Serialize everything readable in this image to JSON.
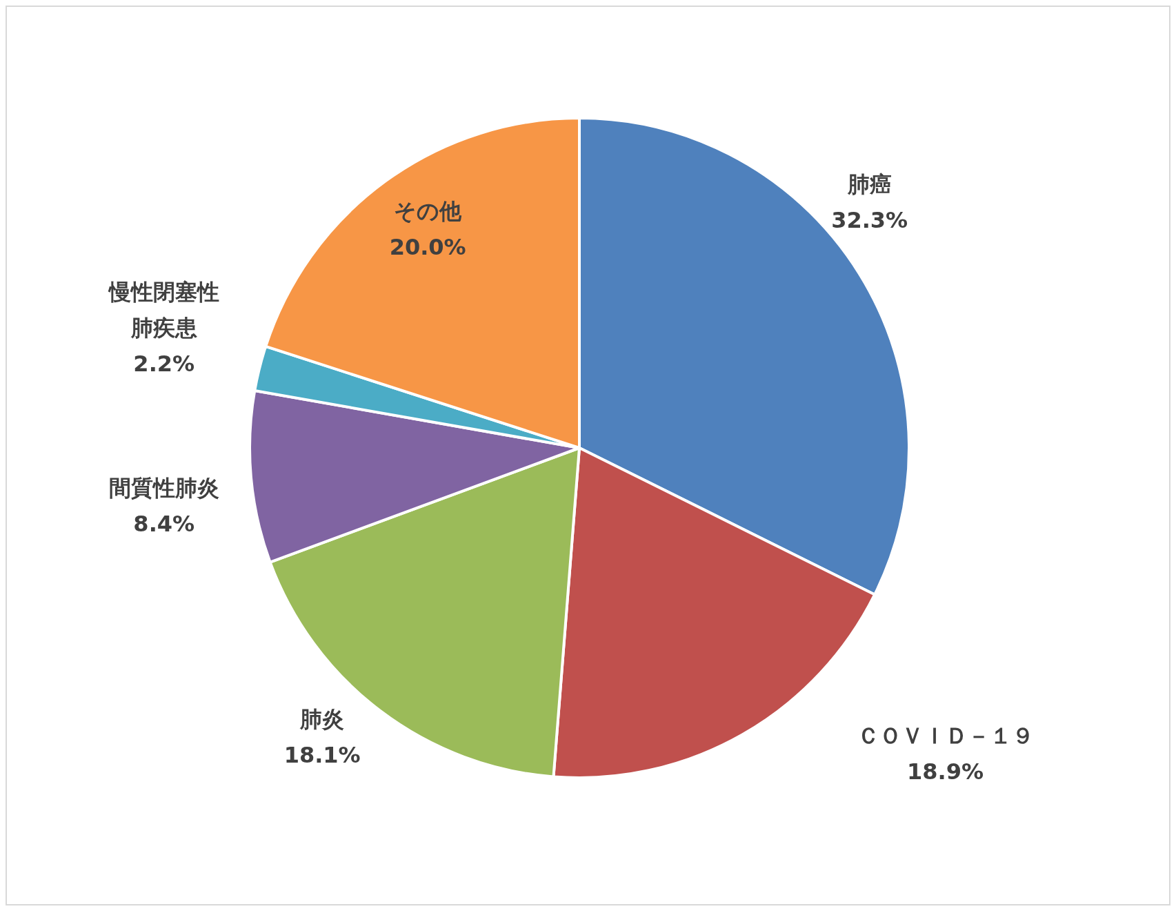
{
  "chart_data": {
    "type": "pie",
    "categories": [
      "肺癌",
      "ＣＯＶＩＤ－１９",
      "肺炎",
      "間質性肺炎",
      "慢性閉塞性肺疾患",
      "その他"
    ],
    "values": [
      32.3,
      18.9,
      18.1,
      8.4,
      2.2,
      20.0
    ],
    "value_labels": [
      "32.3%",
      "18.9%",
      "18.1%",
      "8.4%",
      "2.2%",
      "20.0%"
    ],
    "colors": [
      "#4f81bd",
      "#c0504d",
      "#9bbb59",
      "#8064a2",
      "#4bacc6",
      "#f79646"
    ]
  }
}
